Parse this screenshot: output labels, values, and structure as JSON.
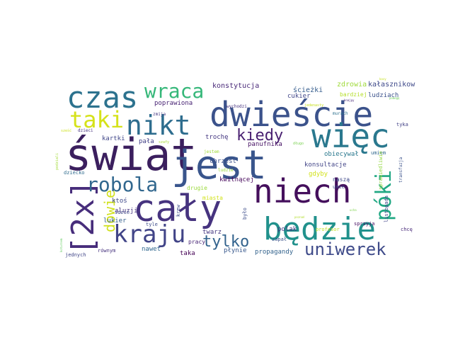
{
  "words": [
    {
      "text": "świat",
      "color": "#3b1f5e",
      "weight": 62
    },
    {
      "text": "jest",
      "color": "#39558c",
      "weight": 52
    },
    {
      "text": "cały",
      "color": "#46337f",
      "weight": 50
    },
    {
      "text": "niech",
      "color": "#440f5c",
      "weight": 48
    },
    {
      "text": "dwieście",
      "color": "#3b528b",
      "weight": 48
    },
    {
      "text": "będzie",
      "color": "#21918c",
      "weight": 46
    },
    {
      "text": "więc",
      "color": "#2a788e",
      "weight": 44
    },
    {
      "text": "czas",
      "color": "#2c728e",
      "weight": 42
    },
    {
      "text": "nikt",
      "color": "#2e6d8e",
      "weight": 36
    },
    {
      "text": "[2x]",
      "color": "#472d7b",
      "weight": 40
    },
    {
      "text": "taki",
      "color": "#d5e21a",
      "weight": 30
    },
    {
      "text": "kraju",
      "color": "#414487",
      "weight": 34
    },
    {
      "text": "robola",
      "color": "#31678e",
      "weight": 26
    },
    {
      "text": "wraca",
      "color": "#35b779",
      "weight": 28
    },
    {
      "text": "uniwerek",
      "color": "#3e4a89",
      "weight": 24
    },
    {
      "text": "kiedy",
      "color": "#481f70",
      "weight": 20
    },
    {
      "text": "tylko",
      "color": "#33638d",
      "weight": 20
    },
    {
      "text": "póki",
      "color": "#22a884",
      "weight": 28
    },
    {
      "text": "dowie",
      "color": "#d0e11c",
      "weight": 20
    },
    {
      "text": "konstytucja",
      "color": "#482878",
      "weight": 10
    },
    {
      "text": "ścieżki",
      "color": "#365d8d",
      "weight": 10
    },
    {
      "text": "zdrowia",
      "color": "#9fda3a",
      "weight": 10
    },
    {
      "text": "kałasznikow",
      "color": "#3e4989",
      "weight": 10
    },
    {
      "text": "poprawiona",
      "color": "#482374",
      "weight": 9
    },
    {
      "text": "cukier",
      "color": "#404688",
      "weight": 9
    },
    {
      "text": "bardziej",
      "color": "#b5de2b",
      "weight": 8
    },
    {
      "text": "ludziach",
      "color": "#3b528b",
      "weight": 9
    },
    {
      "text": "zmija",
      "color": "#453781",
      "weight": 6
    },
    {
      "text": "wychodzi",
      "color": "#46327e",
      "weight": 6
    },
    {
      "text": "jedenasty",
      "color": "#c8e020",
      "weight": 5
    },
    {
      "text": "tyka",
      "color": "#424186",
      "weight": 7
    },
    {
      "text": "murach",
      "color": "#2d718e",
      "weight": 6
    },
    {
      "text": "sześć",
      "color": "#cde11d",
      "weight": 5
    },
    {
      "text": "dzieci",
      "color": "#46327e",
      "weight": 6
    },
    {
      "text": "szafy",
      "color": "#a8db34",
      "weight": 5
    },
    {
      "text": "trochę",
      "color": "#453781",
      "weight": 9
    },
    {
      "text": "panufnika",
      "color": "#471365",
      "weight": 9
    },
    {
      "text": "obiecywał",
      "color": "#2a788e",
      "weight": 9
    },
    {
      "text": "umiem",
      "color": "#31688e",
      "weight": 7
    },
    {
      "text": "kartki",
      "color": "#404688",
      "weight": 9
    },
    {
      "text": "pała",
      "color": "#424086",
      "weight": 9
    },
    {
      "text": "długo",
      "color": "#7ad151",
      "weight": 5
    },
    {
      "text": "jestem",
      "color": "#a0da39",
      "weight": 6
    },
    {
      "text": "ktoś",
      "color": "#3e4989",
      "weight": 9
    },
    {
      "text": "chrzest",
      "color": "#3b528b",
      "weight": 9
    },
    {
      "text": "konsultacje",
      "color": "#414487",
      "weight": 9
    },
    {
      "text": "podziali",
      "color": "#a2da37",
      "weight": 5
    },
    {
      "text": "dziecko",
      "color": "#2f6c8e",
      "weight": 7
    },
    {
      "text": "ludzie",
      "color": "#9bd93c",
      "weight": 6
    },
    {
      "text": "kwitnącej",
      "color": "#46085c",
      "weight": 9
    },
    {
      "text": "sprawiedliwie",
      "color": "#93d741",
      "weight": 7
    },
    {
      "text": "transfuzja",
      "color": "#3b528b",
      "weight": 6
    },
    {
      "text": "drugie",
      "color": "#9bd93c",
      "weight": 8
    },
    {
      "text": "gdyby",
      "color": "#d2e21b",
      "weight": 9
    },
    {
      "text": "aluzji",
      "color": "#46327e",
      "weight": 9
    },
    {
      "text": "naszą",
      "color": "#3e4989",
      "weight": 8
    },
    {
      "text": "umie",
      "color": "#3e4989",
      "weight": 7
    },
    {
      "text": "miasta",
      "color": "#d2e21b",
      "weight": 8
    },
    {
      "text": "krew",
      "color": "#3e4c8a",
      "weight": 7
    },
    {
      "text": "było",
      "color": "#3d4d8a",
      "weight": 7
    },
    {
      "text": "listopada",
      "color": "#404688",
      "weight": 7
    },
    {
      "text": "idzie",
      "color": "#3e4989",
      "weight": 7
    },
    {
      "text": "lukier",
      "color": "#34608d",
      "weight": 9
    },
    {
      "text": "polak",
      "color": "#453882",
      "weight": 9
    },
    {
      "text": "profesor",
      "color": "#c0df25",
      "weight": 7
    },
    {
      "text": "twarz",
      "color": "#453781",
      "weight": 9
    },
    {
      "text": "zapał",
      "color": "#3b528b",
      "weight": 7
    },
    {
      "text": "sprzyja",
      "color": "#471063",
      "weight": 7
    },
    {
      "text": "pracy",
      "color": "#482576",
      "weight": 8
    },
    {
      "text": "chcę",
      "color": "#482979",
      "weight": 7
    },
    {
      "text": "nawet",
      "color": "#31688e",
      "weight": 9
    },
    {
      "text": "taka",
      "color": "#440154",
      "weight": 9
    },
    {
      "text": "płynie",
      "color": "#38588c",
      "weight": 9
    },
    {
      "text": "propagandy",
      "color": "#33638d",
      "weight": 9
    },
    {
      "text": "równym",
      "color": "#46327e",
      "weight": 7
    },
    {
      "text": "jednych",
      "color": "#404688",
      "weight": 7
    },
    {
      "text": "tyle",
      "color": "#3e4c8a",
      "weight": 7
    },
    {
      "text": "poznań",
      "color": "#b2dd2d",
      "weight": 4
    },
    {
      "text": "pomogę",
      "color": "#6ccd5a",
      "weight": 4
    },
    {
      "text": "kasy",
      "color": "#c5e021",
      "weight": 4
    },
    {
      "text": "knajpy",
      "color": "#482878",
      "weight": 4
    },
    {
      "text": "koturnem",
      "color": "#63cb5f",
      "weight": 4
    },
    {
      "text": "ucha",
      "color": "#7fd34e",
      "weight": 4
    }
  ]
}
